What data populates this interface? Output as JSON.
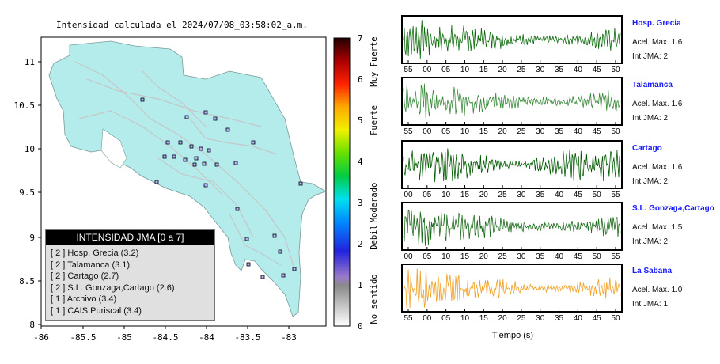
{
  "map": {
    "title": "Intensidad calculada el 2024/07/08_03:58:02_a.m.",
    "lon_ticks": [
      "-86",
      "-85.5",
      "-85",
      "-84.5",
      "-84",
      "-83.5",
      "-83"
    ],
    "lat_ticks": [
      "11",
      "10.5",
      "10",
      "9.5",
      "9",
      "8.5",
      "8"
    ],
    "land_color": "#b4ecec"
  },
  "colorbar": {
    "ticks": [
      "0",
      "1",
      "2",
      "3",
      "4",
      "5",
      "6",
      "7"
    ],
    "labels": [
      "No sentido",
      "Debil",
      "Moderado",
      "Fuerte",
      "Muy Fuerte"
    ]
  },
  "legend": {
    "title": "INTENSIDAD JMA [0 a 7]",
    "items": [
      "[ 2 ]  Hosp. Grecia (3.2)",
      "[ 2 ]  Talamanca (3.1)",
      "[ 2 ]  Cartago (2.7)",
      "[ 2 ]  S.L. Gonzaga,Cartago (2.6)",
      "[ 1 ]  Archivo (3.4)",
      "[ 1 ]  CAIS Puriscal (3.4)"
    ]
  },
  "stations": [
    {
      "name": "Hosp. Grecia",
      "acel": "Acel. Max. 1.6",
      "int": "Int JMA: 2",
      "color": "#0a6a0a",
      "ticks": [
        "55",
        "00",
        "05",
        "10",
        "15",
        "20",
        "25",
        "30",
        "35",
        "40",
        "45",
        "50"
      ]
    },
    {
      "name": "Talamanca",
      "acel": "Acel. Max. 1.6",
      "int": "Int JMA: 2",
      "color": "#3a8a3a",
      "ticks": [
        "55",
        "00",
        "05",
        "10",
        "15",
        "20",
        "25",
        "30",
        "35",
        "40",
        "45",
        "50"
      ]
    },
    {
      "name": "Cartago",
      "acel": "Acel. Max. 1.6",
      "int": "Int JMA: 2",
      "color": "#005a00",
      "ticks": [
        "00",
        "05",
        "10",
        "15",
        "20",
        "25",
        "30",
        "35",
        "40",
        "45",
        "50",
        "55"
      ]
    },
    {
      "name": "S.L. Gonzaga,Cartago",
      "acel": "Acel. Max. 1.5",
      "int": "Int JMA: 2",
      "color": "#1a6a1a",
      "ticks": [
        "00",
        "05",
        "10",
        "15",
        "20",
        "25",
        "30",
        "35",
        "40",
        "45",
        "50",
        "55"
      ]
    },
    {
      "name": "La Sabana",
      "acel": "Acel. Max. 1.0",
      "int": "Int JMA: 1",
      "color": "#f0a020",
      "ticks": [
        "55",
        "00",
        "05",
        "10",
        "15",
        "20",
        "25",
        "30",
        "35",
        "40",
        "45",
        "50"
      ]
    }
  ],
  "time_axis_label": "Tiempo (s)"
}
